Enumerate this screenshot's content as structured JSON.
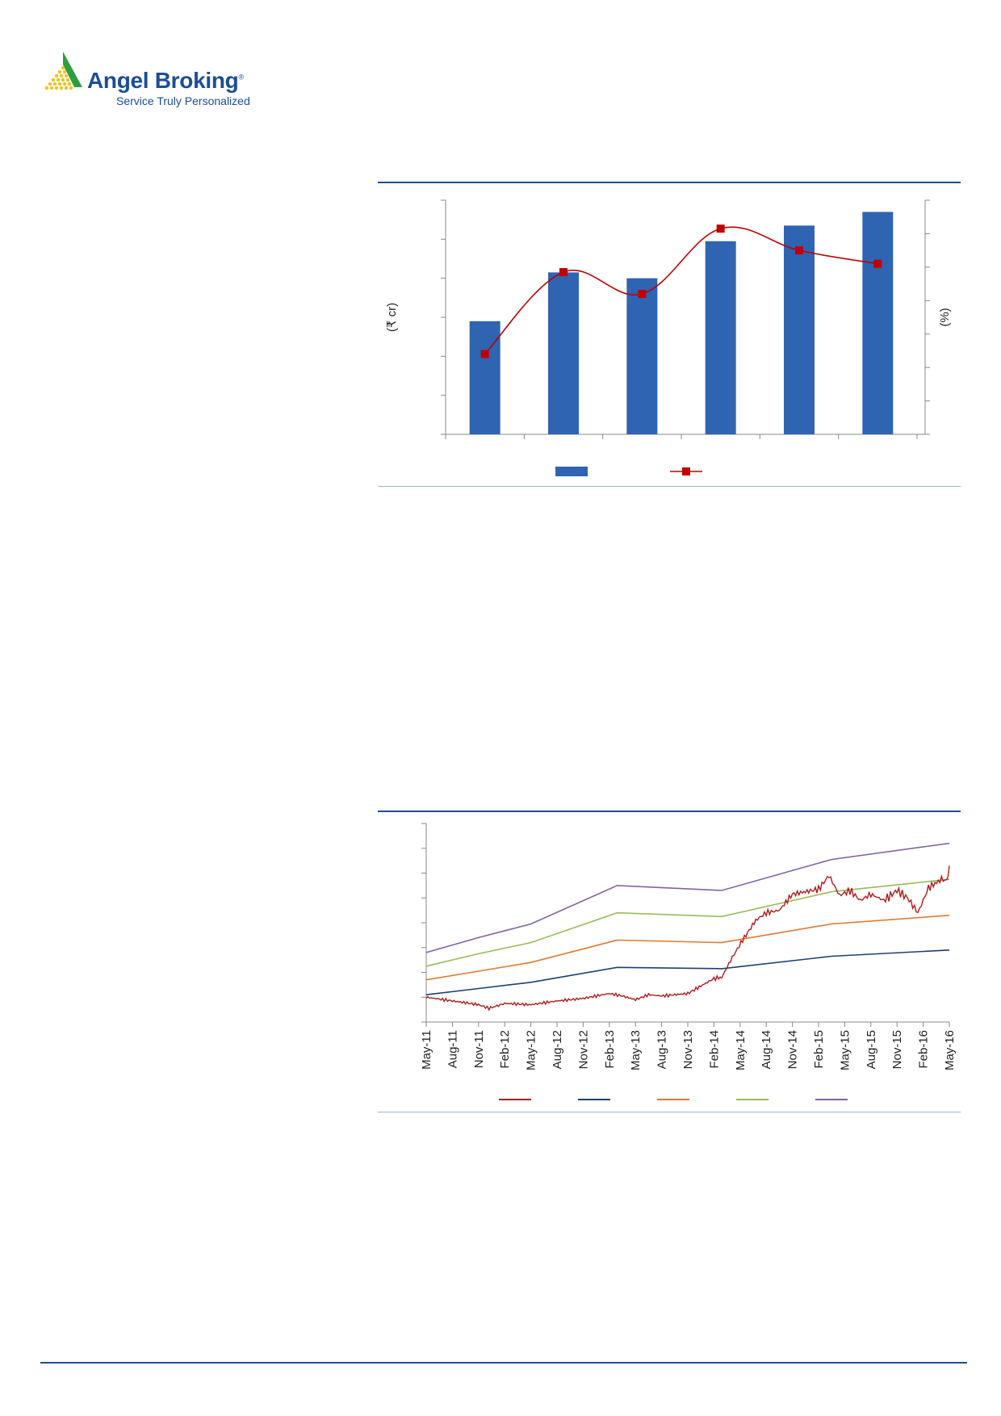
{
  "header": {
    "brand_name": "Angel Broking",
    "registered_mark": "®",
    "tagline": "Service Truly Personalized",
    "brand_color": "#1a4e9a",
    "logo_colors": [
      "#2e9e3e",
      "#f2c21a"
    ]
  },
  "chart_data": [
    {
      "type": "bar",
      "id": "bar-line-combo",
      "categories": [
        "",
        "",
        "",
        "",
        "",
        ""
      ],
      "series": [
        {
          "kind": "bar",
          "axis": "left",
          "color": "#2f64b3",
          "values": [
            2.9,
            4.15,
            4.0,
            4.95,
            5.35,
            5.7
          ]
        },
        {
          "kind": "line",
          "axis": "right",
          "color": "#c00000",
          "values": [
            2.4,
            4.85,
            4.2,
            6.15,
            5.5,
            5.1
          ]
        }
      ],
      "ylabel_left": "(₹ cr)",
      "ylabel_right": "(%)",
      "ylim_left": [
        0,
        6
      ],
      "ylim_right": [
        0,
        7
      ],
      "grid": false,
      "legend_position": "bottom"
    },
    {
      "type": "line",
      "id": "price-band",
      "x_labels": [
        "May-11",
        "Aug-11",
        "Nov-11",
        "Feb-12",
        "May-12",
        "Aug-12",
        "Nov-12",
        "Feb-13",
        "May-13",
        "Aug-13",
        "Nov-13",
        "Feb-14",
        "May-14",
        "Aug-14",
        "Nov-14",
        "Feb-15",
        "May-15",
        "Aug-15",
        "Nov-15",
        "Feb-16",
        "May-16"
      ],
      "ylim": [
        0,
        8
      ],
      "grid": false,
      "legend_position": "bottom",
      "series": [
        {
          "color": "#1f3f73",
          "x": [
            0,
            2,
            4,
            7.3,
            11.3,
            15.5,
            20
          ],
          "values": [
            1.1,
            1.35,
            1.6,
            2.2,
            2.15,
            2.65,
            2.9
          ]
        },
        {
          "color": "#e07b32",
          "x": [
            0,
            2,
            4,
            7.3,
            11.3,
            15.5,
            20
          ],
          "values": [
            1.7,
            2.05,
            2.4,
            3.3,
            3.2,
            3.95,
            4.3
          ]
        },
        {
          "color": "#9bbb59",
          "x": [
            0,
            2,
            4,
            7.3,
            11.3,
            15.5,
            20
          ],
          "values": [
            2.25,
            2.75,
            3.2,
            4.4,
            4.25,
            5.25,
            5.75
          ]
        },
        {
          "color": "#8064a2",
          "x": [
            0,
            2,
            4,
            7.3,
            11.3,
            15.5,
            20
          ],
          "values": [
            2.8,
            3.4,
            3.95,
            5.5,
            5.3,
            6.55,
            7.2
          ]
        },
        {
          "color": "#b01c1c",
          "x": [
            0,
            1,
            2,
            2.4,
            3,
            4,
            5,
            6,
            7,
            7.5,
            8,
            8.5,
            9,
            10,
            11,
            11.3,
            11.7,
            12.1,
            12.6,
            13,
            13.5,
            14,
            14.5,
            15,
            15.4,
            15.8,
            16.2,
            16.6,
            17,
            17.5,
            18,
            18.4,
            18.8,
            19.2,
            19.7,
            19.9,
            20
          ],
          "values": [
            1.0,
            0.85,
            0.7,
            0.55,
            0.75,
            0.7,
            0.85,
            0.95,
            1.15,
            1.05,
            0.9,
            1.1,
            1.05,
            1.15,
            1.75,
            1.8,
            2.6,
            3.3,
            4.1,
            4.4,
            4.5,
            5.15,
            5.25,
            5.35,
            5.9,
            5.1,
            5.3,
            4.9,
            5.15,
            4.9,
            5.3,
            5.0,
            4.4,
            5.4,
            5.75,
            5.7,
            6.3
          ]
        }
      ]
    }
  ]
}
